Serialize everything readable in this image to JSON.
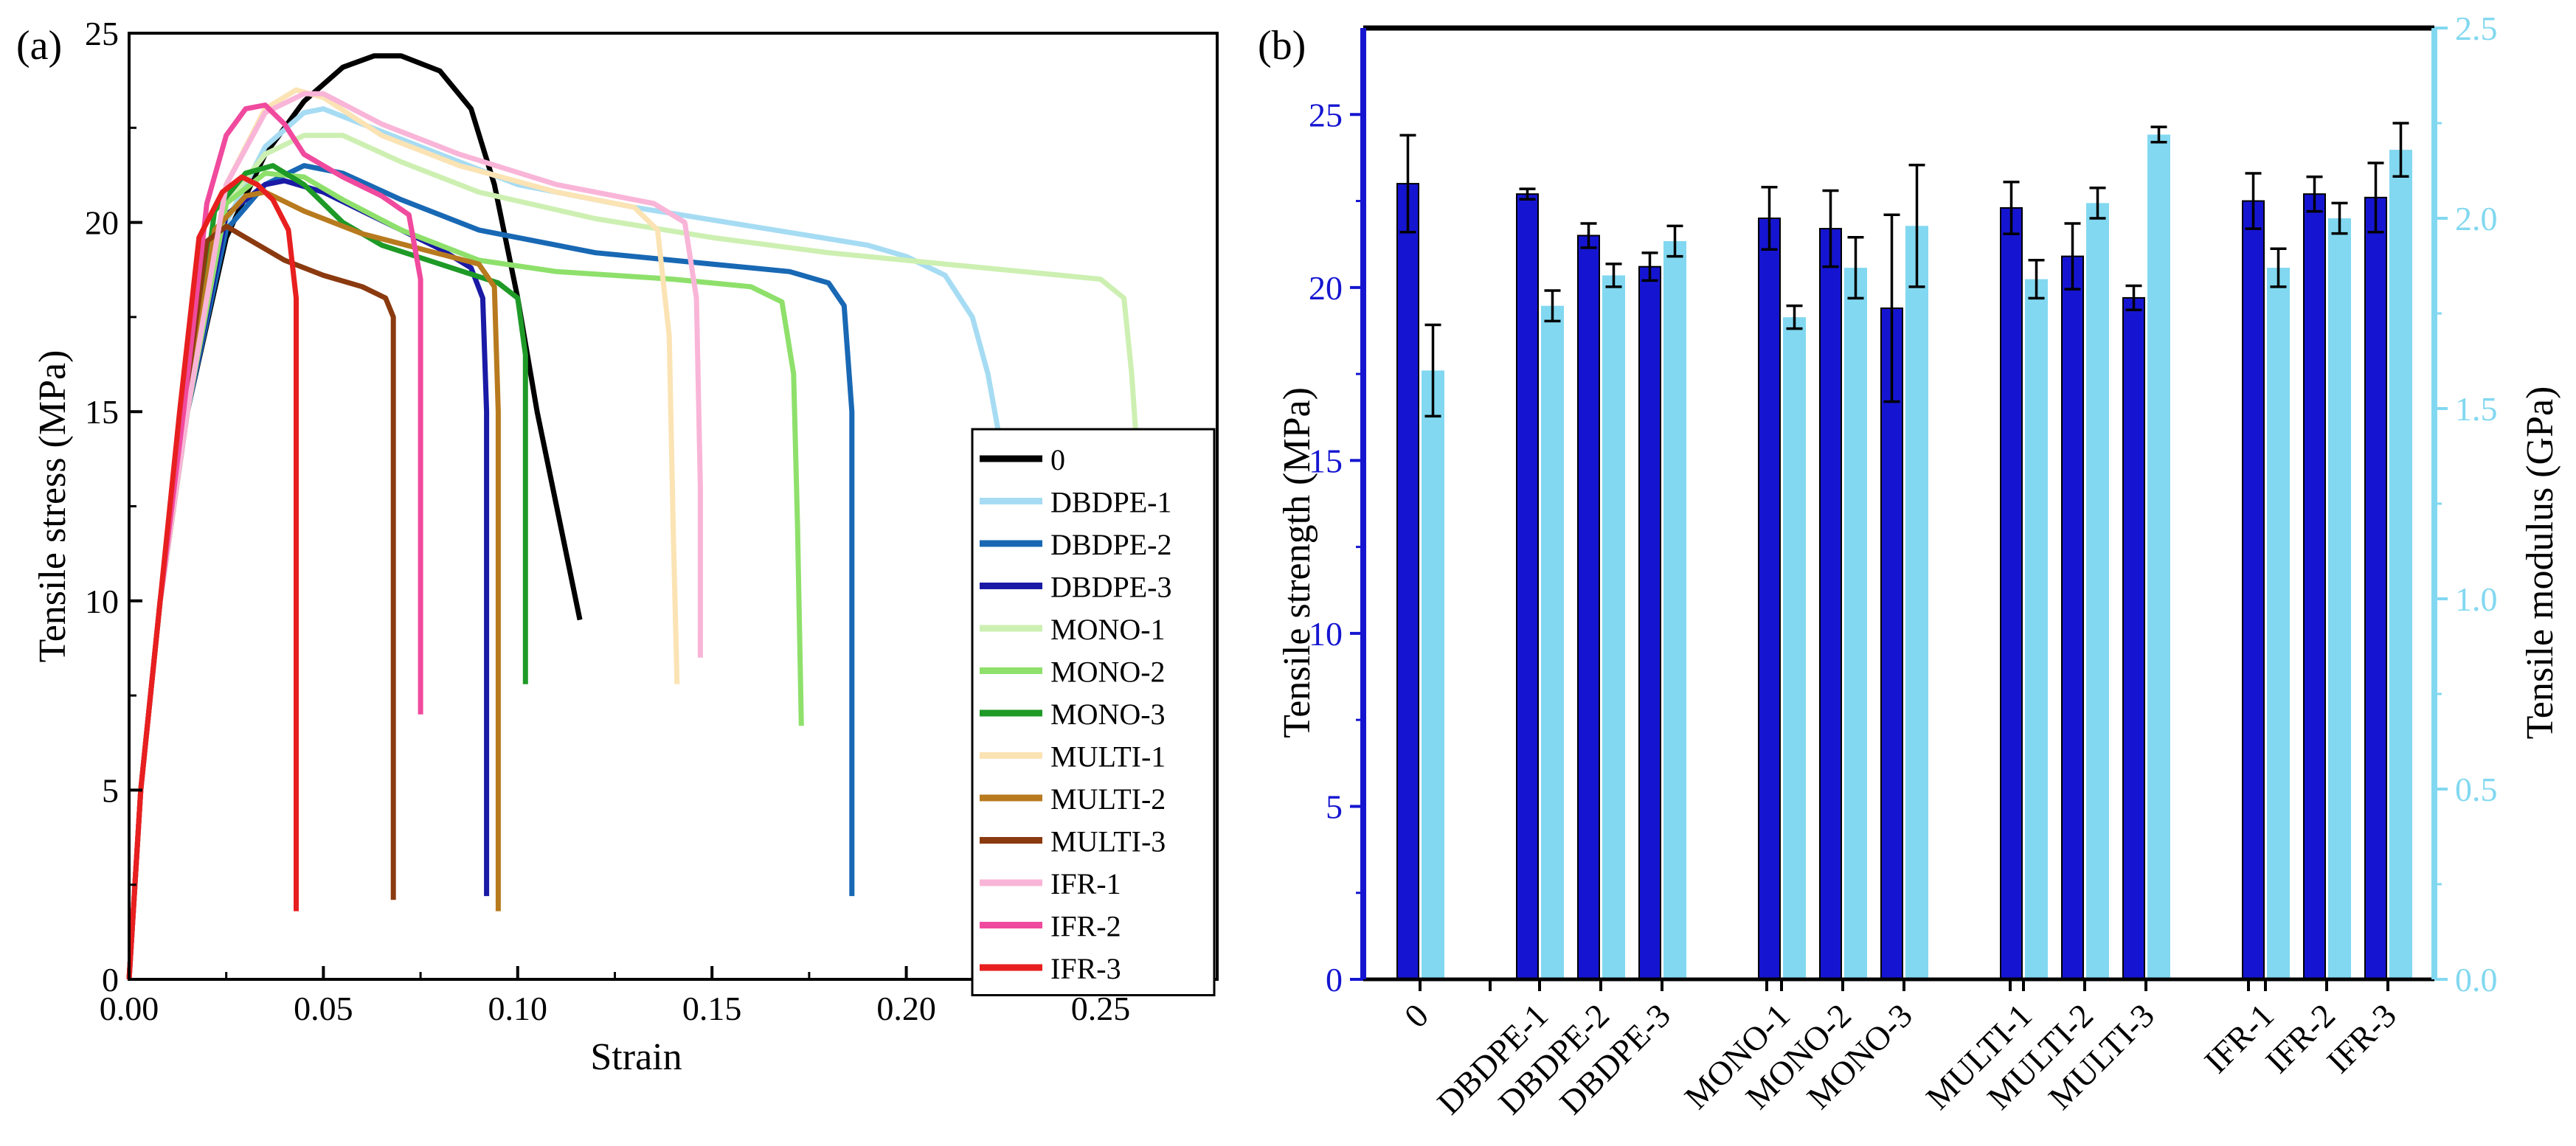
{
  "panels": {
    "a_label": "(a)",
    "b_label": "(b)"
  },
  "chart_data": [
    {
      "type": "line",
      "title": "",
      "xlabel": "Strain",
      "ylabel": "Tensile stress (MPa)",
      "xlim": [
        0,
        0.28
      ],
      "ylim": [
        0,
        25
      ],
      "xticks": [
        "0.00",
        "0.05",
        "0.10",
        "0.15",
        "0.20",
        "0.25"
      ],
      "yticks": [
        "0",
        "5",
        "10",
        "15",
        "20",
        "25"
      ],
      "legend_position": "bottom-right",
      "series": [
        {
          "name": "0",
          "color": "#000000",
          "points": [
            [
              0,
              0
            ],
            [
              0.003,
              5
            ],
            [
              0.008,
              10
            ],
            [
              0.015,
              15
            ],
            [
              0.025,
              19.6
            ],
            [
              0.035,
              21.8
            ],
            [
              0.045,
              23.2
            ],
            [
              0.055,
              24.1
            ],
            [
              0.063,
              24.4
            ],
            [
              0.07,
              24.4
            ],
            [
              0.08,
              24.0
            ],
            [
              0.088,
              23.0
            ],
            [
              0.094,
              21.0
            ],
            [
              0.1,
              18.0
            ],
            [
              0.105,
              15.0
            ],
            [
              0.11,
              12.5
            ],
            [
              0.116,
              9.5
            ]
          ]
        },
        {
          "name": "DBDPE-1",
          "color": "#a6dcf3",
          "points": [
            [
              0,
              0
            ],
            [
              0.003,
              5
            ],
            [
              0.008,
              10
            ],
            [
              0.015,
              15
            ],
            [
              0.025,
              20.0
            ],
            [
              0.035,
              22.0
            ],
            [
              0.045,
              22.9
            ],
            [
              0.05,
              23.0
            ],
            [
              0.06,
              22.6
            ],
            [
              0.08,
              21.8
            ],
            [
              0.1,
              21.0
            ],
            [
              0.13,
              20.4
            ],
            [
              0.16,
              19.9
            ],
            [
              0.19,
              19.4
            ],
            [
              0.2,
              19.1
            ],
            [
              0.21,
              18.6
            ],
            [
              0.217,
              17.5
            ],
            [
              0.221,
              16.0
            ],
            [
              0.224,
              14.3
            ]
          ]
        },
        {
          "name": "DBDPE-2",
          "color": "#1868b4",
          "points": [
            [
              0,
              0
            ],
            [
              0.003,
              5
            ],
            [
              0.008,
              10
            ],
            [
              0.015,
              15
            ],
            [
              0.025,
              19.8
            ],
            [
              0.035,
              21.0
            ],
            [
              0.045,
              21.5
            ],
            [
              0.055,
              21.3
            ],
            [
              0.07,
              20.6
            ],
            [
              0.09,
              19.8
            ],
            [
              0.12,
              19.2
            ],
            [
              0.15,
              18.9
            ],
            [
              0.17,
              18.7
            ],
            [
              0.18,
              18.4
            ],
            [
              0.184,
              17.8
            ],
            [
              0.186,
              15.0
            ],
            [
              0.186,
              2.2
            ]
          ]
        },
        {
          "name": "DBDPE-3",
          "color": "#1a1aa6",
          "points": [
            [
              0,
              0
            ],
            [
              0.003,
              5
            ],
            [
              0.008,
              10
            ],
            [
              0.015,
              15
            ],
            [
              0.025,
              20.2
            ],
            [
              0.035,
              21.0
            ],
            [
              0.04,
              21.1
            ],
            [
              0.05,
              20.8
            ],
            [
              0.06,
              20.3
            ],
            [
              0.07,
              19.8
            ],
            [
              0.08,
              19.3
            ],
            [
              0.088,
              18.8
            ],
            [
              0.091,
              18.0
            ],
            [
              0.092,
              15.0
            ],
            [
              0.092,
              2.2
            ]
          ]
        },
        {
          "name": "MONO-1",
          "color": "#cdf0b2",
          "points": [
            [
              0,
              0
            ],
            [
              0.003,
              5
            ],
            [
              0.008,
              10
            ],
            [
              0.015,
              15
            ],
            [
              0.025,
              20.5
            ],
            [
              0.035,
              21.8
            ],
            [
              0.045,
              22.3
            ],
            [
              0.055,
              22.3
            ],
            [
              0.07,
              21.6
            ],
            [
              0.09,
              20.8
            ],
            [
              0.12,
              20.1
            ],
            [
              0.15,
              19.6
            ],
            [
              0.18,
              19.2
            ],
            [
              0.21,
              18.9
            ],
            [
              0.24,
              18.6
            ],
            [
              0.25,
              18.5
            ],
            [
              0.256,
              18.0
            ],
            [
              0.258,
              16.0
            ],
            [
              0.259,
              14.5
            ]
          ]
        },
        {
          "name": "MONO-2",
          "color": "#8ee06b",
          "points": [
            [
              0,
              0
            ],
            [
              0.003,
              5
            ],
            [
              0.008,
              10
            ],
            [
              0.015,
              15
            ],
            [
              0.025,
              20.5
            ],
            [
              0.035,
              21.3
            ],
            [
              0.045,
              21.2
            ],
            [
              0.055,
              20.6
            ],
            [
              0.07,
              19.8
            ],
            [
              0.09,
              19.0
            ],
            [
              0.11,
              18.7
            ],
            [
              0.14,
              18.5
            ],
            [
              0.16,
              18.3
            ],
            [
              0.168,
              17.9
            ],
            [
              0.171,
              16.0
            ],
            [
              0.172,
              12.0
            ],
            [
              0.173,
              6.7
            ]
          ]
        },
        {
          "name": "MONO-3",
          "color": "#1e9a27",
          "points": [
            [
              0,
              0
            ],
            [
              0.003,
              5
            ],
            [
              0.008,
              10
            ],
            [
              0.015,
              15
            ],
            [
              0.022,
              20.3
            ],
            [
              0.03,
              21.3
            ],
            [
              0.037,
              21.5
            ],
            [
              0.045,
              21.0
            ],
            [
              0.055,
              20.0
            ],
            [
              0.065,
              19.4
            ],
            [
              0.08,
              18.9
            ],
            [
              0.095,
              18.4
            ],
            [
              0.1,
              18.0
            ],
            [
              0.102,
              16.5
            ],
            [
              0.102,
              7.8
            ]
          ]
        },
        {
          "name": "MULTI-1",
          "color": "#fbe3b4",
          "points": [
            [
              0,
              0
            ],
            [
              0.003,
              5
            ],
            [
              0.008,
              10
            ],
            [
              0.015,
              15
            ],
            [
              0.025,
              21.0
            ],
            [
              0.035,
              23.0
            ],
            [
              0.043,
              23.5
            ],
            [
              0.05,
              23.3
            ],
            [
              0.065,
              22.3
            ],
            [
              0.085,
              21.5
            ],
            [
              0.11,
              20.8
            ],
            [
              0.13,
              20.4
            ],
            [
              0.136,
              19.8
            ],
            [
              0.139,
              17.0
            ],
            [
              0.14,
              12.0
            ],
            [
              0.141,
              7.8
            ]
          ]
        },
        {
          "name": "MULTI-2",
          "color": "#b87a1e",
          "points": [
            [
              0,
              0
            ],
            [
              0.003,
              5
            ],
            [
              0.008,
              10
            ],
            [
              0.015,
              15
            ],
            [
              0.022,
              19.8
            ],
            [
              0.03,
              20.7
            ],
            [
              0.035,
              20.8
            ],
            [
              0.045,
              20.3
            ],
            [
              0.06,
              19.7
            ],
            [
              0.075,
              19.3
            ],
            [
              0.09,
              18.9
            ],
            [
              0.094,
              18.3
            ],
            [
              0.095,
              15.0
            ],
            [
              0.095,
              1.8
            ]
          ]
        },
        {
          "name": "MULTI-3",
          "color": "#8b3a10",
          "points": [
            [
              0,
              0
            ],
            [
              0.003,
              5
            ],
            [
              0.008,
              10
            ],
            [
              0.014,
              15
            ],
            [
              0.02,
              19.5
            ],
            [
              0.025,
              19.9
            ],
            [
              0.03,
              19.6
            ],
            [
              0.04,
              19.0
            ],
            [
              0.05,
              18.6
            ],
            [
              0.06,
              18.3
            ],
            [
              0.066,
              18.0
            ],
            [
              0.068,
              17.5
            ],
            [
              0.068,
              2.1
            ]
          ]
        },
        {
          "name": "IFR-1",
          "color": "#f9b5d8",
          "points": [
            [
              0,
              0
            ],
            [
              0.003,
              5
            ],
            [
              0.008,
              10
            ],
            [
              0.015,
              15
            ],
            [
              0.025,
              21.0
            ],
            [
              0.035,
              22.9
            ],
            [
              0.045,
              23.4
            ],
            [
              0.05,
              23.4
            ],
            [
              0.065,
              22.6
            ],
            [
              0.085,
              21.8
            ],
            [
              0.11,
              21.0
            ],
            [
              0.135,
              20.5
            ],
            [
              0.143,
              20.0
            ],
            [
              0.146,
              18.0
            ],
            [
              0.147,
              13.0
            ],
            [
              0.147,
              8.5
            ]
          ]
        },
        {
          "name": "IFR-2",
          "color": "#f04a9e",
          "points": [
            [
              0,
              0
            ],
            [
              0.003,
              5
            ],
            [
              0.008,
              10
            ],
            [
              0.014,
              15
            ],
            [
              0.02,
              20.5
            ],
            [
              0.025,
              22.3
            ],
            [
              0.03,
              23.0
            ],
            [
              0.035,
              23.1
            ],
            [
              0.04,
              22.6
            ],
            [
              0.045,
              21.8
            ],
            [
              0.055,
              21.2
            ],
            [
              0.065,
              20.7
            ],
            [
              0.072,
              20.2
            ],
            [
              0.075,
              18.5
            ],
            [
              0.075,
              7.0
            ]
          ]
        },
        {
          "name": "IFR-3",
          "color": "#e81f1f",
          "points": [
            [
              0,
              0
            ],
            [
              0.003,
              5
            ],
            [
              0.008,
              10
            ],
            [
              0.013,
              15
            ],
            [
              0.018,
              19.6
            ],
            [
              0.024,
              20.8
            ],
            [
              0.029,
              21.2
            ],
            [
              0.033,
              21.0
            ],
            [
              0.037,
              20.6
            ],
            [
              0.041,
              19.8
            ],
            [
              0.043,
              18.0
            ],
            [
              0.043,
              1.8
            ]
          ]
        }
      ]
    },
    {
      "type": "bar",
      "title": "",
      "xlabel": "",
      "ylabel": "Tensile strength (MPa)",
      "ylabel_right": "Tensile modulus (GPa)",
      "ylim": [
        0,
        27.5
      ],
      "ylim_right": [
        0,
        2.5
      ],
      "yticks": [
        "0",
        "5",
        "10",
        "15",
        "20",
        "25"
      ],
      "yticks_right": [
        "0.0",
        "0.5",
        "1.0",
        "1.5",
        "2.0",
        "2.5"
      ],
      "categories": [
        "0",
        "DBDPE-1",
        "DBDPE-2",
        "DBDPE-3",
        "MONO-1",
        "MONO-2",
        "MONO-3",
        "MULTI-1",
        "MULTI-2",
        "MULTI-3",
        "IFR-1",
        "IFR-2",
        "IFR-3"
      ],
      "groups": [
        [
          0
        ],
        [
          1,
          2,
          3
        ],
        [
          4,
          5,
          6
        ],
        [
          7,
          8,
          9
        ],
        [
          10,
          11,
          12
        ]
      ],
      "series": [
        {
          "color": "#1515d1",
          "axis": "left",
          "values": [
            23.0,
            22.7,
            21.5,
            20.6,
            22.0,
            21.7,
            19.4,
            22.3,
            20.9,
            19.7,
            22.5,
            22.7,
            22.6
          ],
          "errors": [
            1.4,
            0.15,
            0.35,
            0.4,
            0.9,
            1.1,
            2.7,
            0.75,
            0.95,
            0.35,
            0.8,
            0.5,
            1.0
          ]
        },
        {
          "color": "#82d8f0",
          "axis": "right",
          "values": [
            1.6,
            1.77,
            1.85,
            1.94,
            1.74,
            1.87,
            1.98,
            1.84,
            2.04,
            2.22,
            1.87,
            2.0,
            2.18
          ],
          "errors": [
            0.12,
            0.04,
            0.03,
            0.04,
            0.03,
            0.08,
            0.16,
            0.05,
            0.04,
            0.02,
            0.05,
            0.04,
            0.07
          ]
        }
      ]
    }
  ]
}
